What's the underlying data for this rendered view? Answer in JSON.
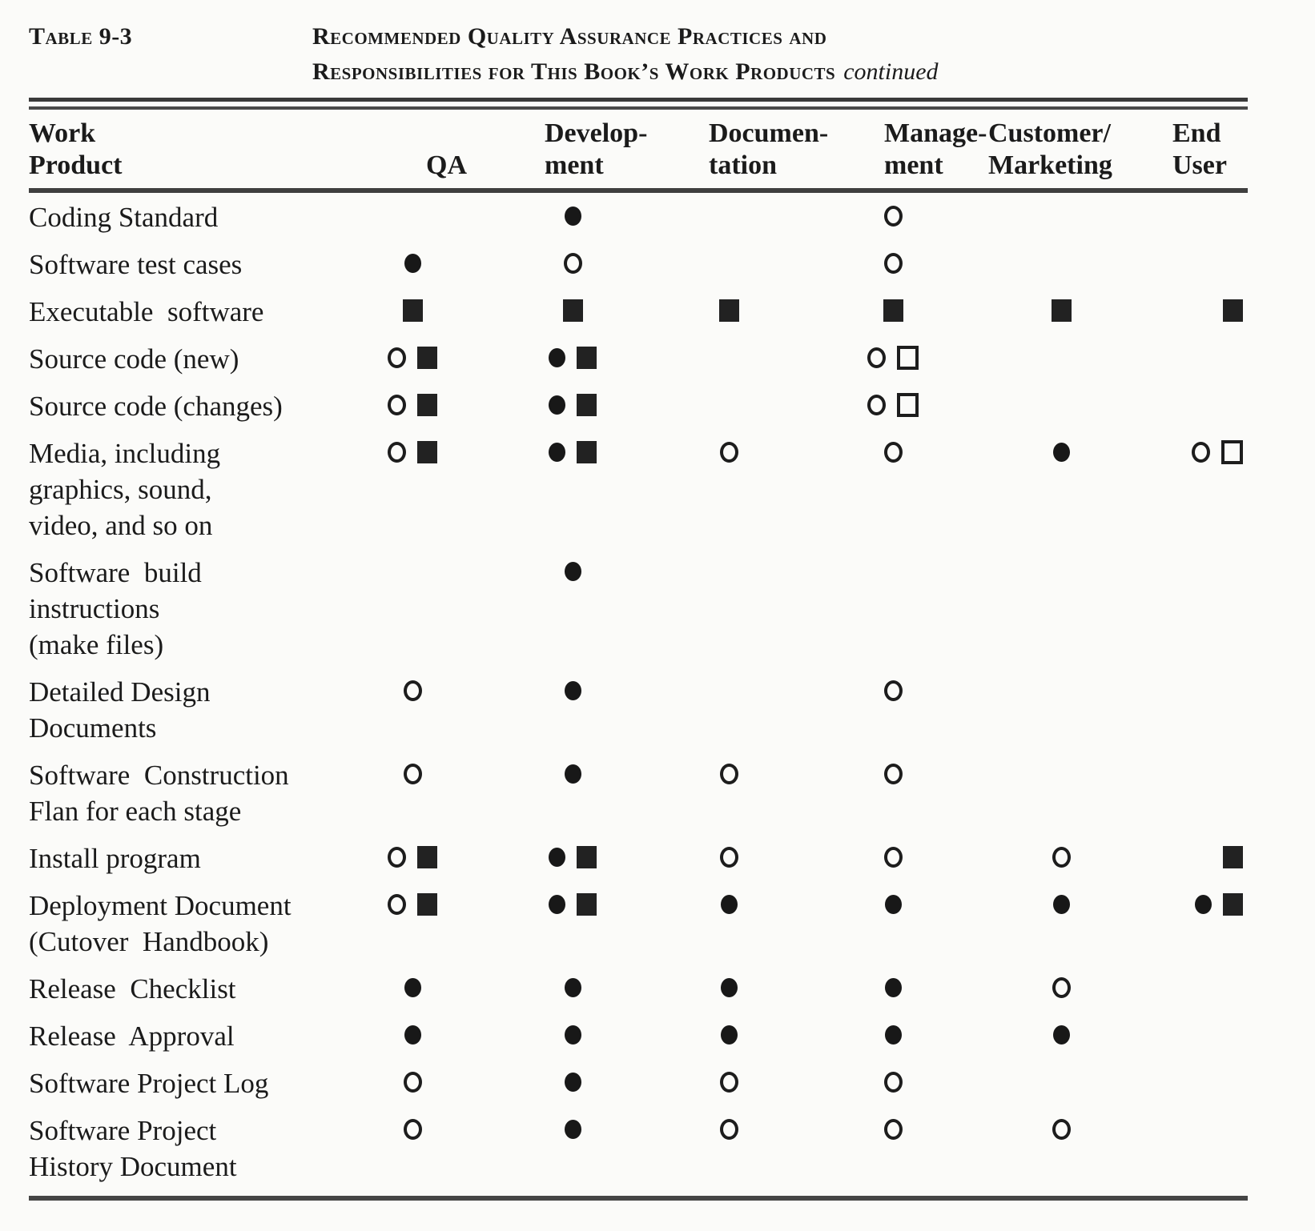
{
  "colors": {
    "background": "#fbfbf9",
    "ink": "#1b1b1b"
  },
  "symbols": {
    "filled-circle": "●",
    "open-circle": "○",
    "filled-square": "■",
    "open-square": "□"
  },
  "title": {
    "label": "Table 9-3",
    "line1": "Recommended Quality Assurance Practices and",
    "line2": "Responsibilities for This Book’s Work Products",
    "continued": "continued"
  },
  "table": {
    "header": [
      {
        "id": "work-product",
        "lines": [
          "Work",
          "Product"
        ]
      },
      {
        "id": "qa",
        "lines": [
          "QA"
        ]
      },
      {
        "id": "development",
        "lines": [
          "Develop-",
          "ment"
        ]
      },
      {
        "id": "documentation",
        "lines": [
          "Documen-",
          "tation"
        ]
      },
      {
        "id": "management",
        "lines": [
          "Manage-",
          "ment"
        ]
      },
      {
        "id": "customer-marketing",
        "lines": [
          "Customer/",
          "Marketing"
        ]
      },
      {
        "id": "end-user",
        "lines": [
          "End",
          "User"
        ]
      }
    ],
    "rows": [
      {
        "label": [
          "Coding Standard"
        ],
        "cells": [
          [],
          [
            "filled-circle"
          ],
          [],
          [
            "open-circle"
          ],
          [],
          []
        ]
      },
      {
        "label": [
          "Software test cases"
        ],
        "cells": [
          [
            "filled-circle"
          ],
          [
            "open-circle"
          ],
          [],
          [
            "open-circle"
          ],
          [],
          []
        ]
      },
      {
        "label": [
          "Executable  software"
        ],
        "cells": [
          [
            "filled-square"
          ],
          [
            "filled-square"
          ],
          [
            "filled-square"
          ],
          [
            "filled-square"
          ],
          [
            "filled-square"
          ],
          [
            "filled-square"
          ]
        ]
      },
      {
        "label": [
          "Source code (new)"
        ],
        "cells": [
          [
            "open-circle",
            "filled-square"
          ],
          [
            "filled-circle",
            "filled-square"
          ],
          [],
          [
            "open-circle",
            "open-square"
          ],
          [],
          []
        ]
      },
      {
        "label": [
          "Source code (changes)"
        ],
        "cells": [
          [
            "open-circle",
            "filled-square"
          ],
          [
            "filled-circle",
            "filled-square"
          ],
          [],
          [
            "open-circle",
            "open-square"
          ],
          [],
          []
        ]
      },
      {
        "label": [
          "Media, including",
          "graphics, sound,",
          "video, and so on"
        ],
        "cells": [
          [
            "open-circle",
            "filled-square"
          ],
          [
            "filled-circle",
            "filled-square"
          ],
          [
            "open-circle"
          ],
          [
            "open-circle"
          ],
          [
            "filled-circle"
          ],
          [
            "open-circle",
            "open-square"
          ]
        ]
      },
      {
        "label": [
          "Software  build",
          "instructions",
          "(make files)"
        ],
        "cells": [
          [],
          [
            "filled-circle"
          ],
          [],
          [],
          [],
          []
        ]
      },
      {
        "label": [
          "Detailed Design",
          "Documents"
        ],
        "cells": [
          [
            "open-circle"
          ],
          [
            "filled-circle"
          ],
          [],
          [
            "open-circle"
          ],
          [],
          []
        ]
      },
      {
        "label": [
          "Software  Construction",
          "Flan for each stage"
        ],
        "cells": [
          [
            "open-circle"
          ],
          [
            "filled-circle"
          ],
          [
            "open-circle"
          ],
          [
            "open-circle"
          ],
          [],
          []
        ]
      },
      {
        "label": [
          "Install program"
        ],
        "cells": [
          [
            "open-circle",
            "filled-square"
          ],
          [
            "filled-circle",
            "filled-square"
          ],
          [
            "open-circle"
          ],
          [
            "open-circle"
          ],
          [
            "open-circle"
          ],
          [
            "filled-square"
          ]
        ]
      },
      {
        "label": [
          "Deployment Document",
          "(Cutover  Handbook)"
        ],
        "cells": [
          [
            "open-circle",
            "filled-square"
          ],
          [
            "filled-circle",
            "filled-square"
          ],
          [
            "filled-circle"
          ],
          [
            "filled-circle"
          ],
          [
            "filled-circle"
          ],
          [
            "filled-circle",
            "filled-square"
          ]
        ]
      },
      {
        "label": [
          "Release  Checklist"
        ],
        "cells": [
          [
            "filled-circle"
          ],
          [
            "filled-circle"
          ],
          [
            "filled-circle"
          ],
          [
            "filled-circle"
          ],
          [
            "open-circle"
          ],
          []
        ]
      },
      {
        "label": [
          "Release  Approval"
        ],
        "cells": [
          [
            "filled-circle"
          ],
          [
            "filled-circle"
          ],
          [
            "filled-circle"
          ],
          [
            "filled-circle"
          ],
          [
            "filled-circle"
          ],
          []
        ]
      },
      {
        "label": [
          "Software Project Log"
        ],
        "cells": [
          [
            "open-circle"
          ],
          [
            "filled-circle"
          ],
          [
            "open-circle"
          ],
          [
            "open-circle"
          ],
          [],
          []
        ]
      },
      {
        "label": [
          "Software Project",
          "History Document"
        ],
        "cells": [
          [
            "open-circle"
          ],
          [
            "filled-circle"
          ],
          [
            "open-circle"
          ],
          [
            "open-circle"
          ],
          [
            "open-circle"
          ],
          []
        ]
      }
    ]
  }
}
